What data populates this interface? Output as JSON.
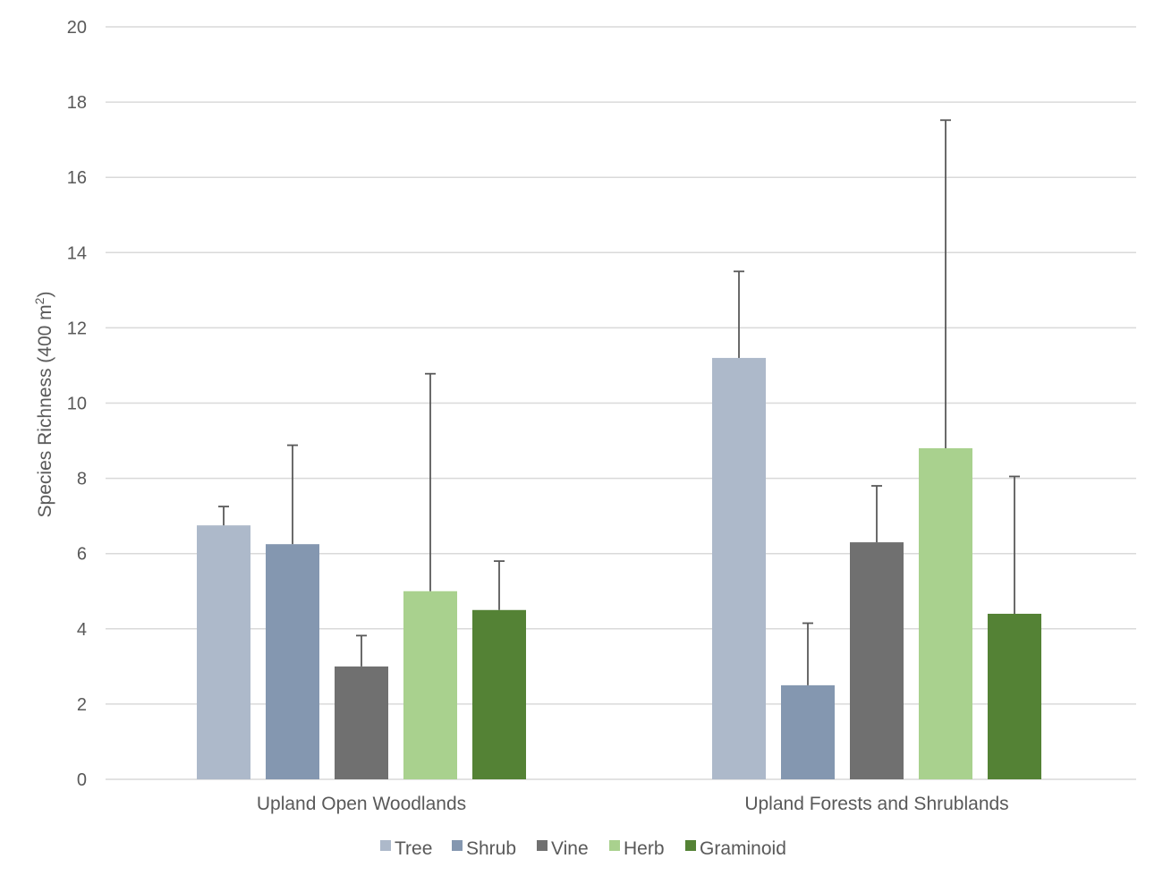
{
  "chart_data": {
    "type": "bar",
    "categories": [
      "Upland Open Woodlands",
      "Upland Forests and Shrublands"
    ],
    "series": [
      {
        "name": "Tree",
        "color": "#adb9ca",
        "values": [
          6.75,
          11.2
        ],
        "error_upper": [
          7.25,
          13.5
        ]
      },
      {
        "name": "Shrub",
        "color": "#8497b0",
        "values": [
          6.25,
          2.5
        ],
        "error_upper": [
          8.88,
          4.15
        ]
      },
      {
        "name": "Vine",
        "color": "#707070",
        "values": [
          3.0,
          6.3
        ],
        "error_upper": [
          3.82,
          7.8
        ]
      },
      {
        "name": "Herb",
        "color": "#a9d18e",
        "values": [
          5.0,
          8.8
        ],
        "error_upper": [
          10.78,
          17.52
        ]
      },
      {
        "name": "Graminoid",
        "color": "#548235",
        "values": [
          4.5,
          4.4
        ],
        "error_upper": [
          5.8,
          8.05
        ]
      }
    ],
    "ylabel_main": "Species Richness (400 m",
    "ylabel_sup": "2",
    "ylabel_close": ")",
    "ylim": [
      0,
      20
    ],
    "yticks": [
      0,
      2,
      4,
      6,
      8,
      10,
      12,
      14,
      16,
      18,
      20
    ],
    "grid": true,
    "legend_position": "bottom"
  }
}
